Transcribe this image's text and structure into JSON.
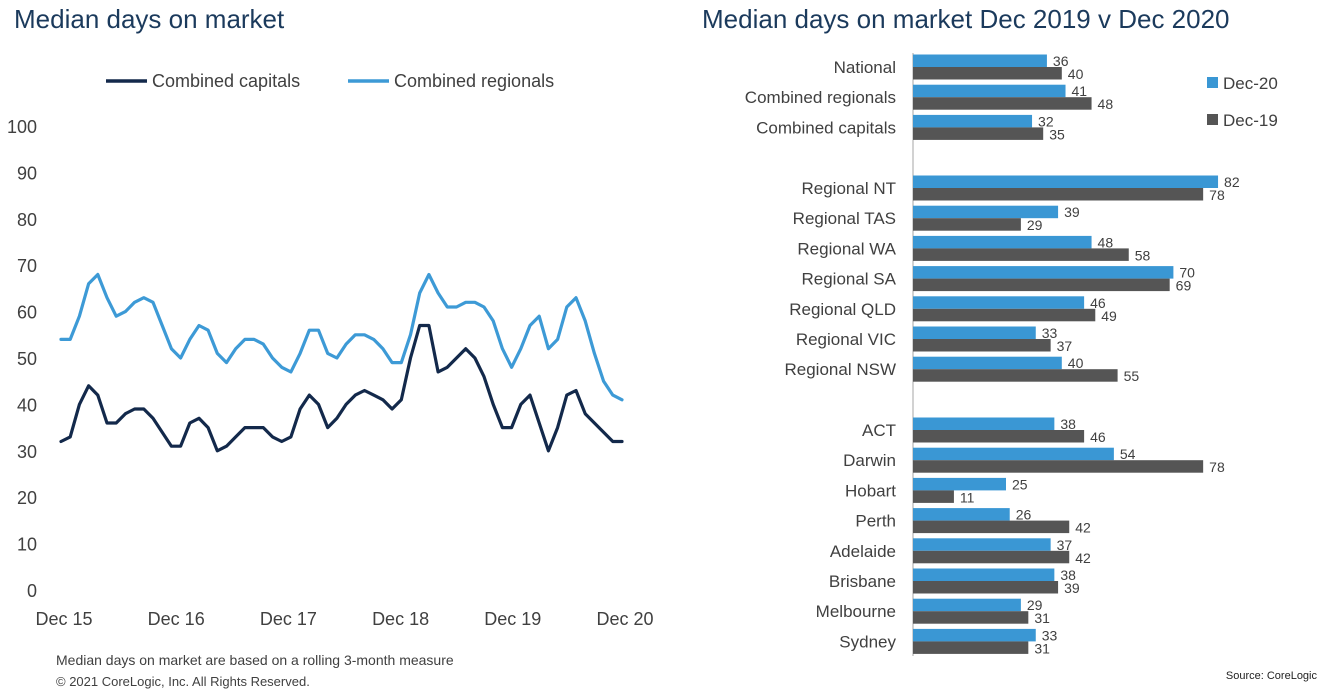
{
  "footnote": "Median days on market are based on a rolling 3-month measure",
  "copyright": "© 2021 CoreLogic, Inc. All Rights Reserved.",
  "source": "Source: CoreLogic",
  "colors": {
    "capitals": "#13294b",
    "regionals": "#3d9ad6",
    "dec20": "#3a97d4",
    "dec19": "#555555",
    "title": "#1b3a5c"
  },
  "chart_data": [
    {
      "type": "line",
      "title": "Median days on market",
      "xlabel": "",
      "ylabel": "",
      "ylim": [
        0,
        100
      ],
      "yticks": [
        0,
        10,
        20,
        30,
        40,
        50,
        60,
        70,
        80,
        90,
        100
      ],
      "xtick_labels": [
        "Dec 15",
        "Dec 16",
        "Dec 17",
        "Dec 18",
        "Dec 19",
        "Dec 20"
      ],
      "x_start": "2015-12",
      "x_end": "2020-12",
      "legend_position": "top",
      "grid": false,
      "series": [
        {
          "name": "Combined capitals",
          "values": [
            32,
            33,
            40,
            44,
            42,
            36,
            36,
            38,
            39,
            39,
            37,
            34,
            31,
            31,
            36,
            37,
            35,
            30,
            31,
            33,
            35,
            35,
            35,
            33,
            32,
            33,
            39,
            42,
            40,
            35,
            37,
            40,
            42,
            43,
            42,
            41,
            39,
            41,
            50,
            57,
            57,
            47,
            48,
            50,
            52,
            50,
            46,
            40,
            35,
            35,
            40,
            42,
            36,
            30,
            35,
            42,
            43,
            38,
            36,
            34,
            32,
            32
          ]
        },
        {
          "name": "Combined regionals",
          "values": [
            54,
            54,
            59,
            66,
            68,
            63,
            59,
            60,
            62,
            63,
            62,
            57,
            52,
            50,
            54,
            57,
            56,
            51,
            49,
            52,
            54,
            54,
            53,
            50,
            48,
            47,
            51,
            56,
            56,
            51,
            50,
            53,
            55,
            55,
            54,
            52,
            49,
            49,
            55,
            64,
            68,
            64,
            61,
            61,
            62,
            62,
            61,
            58,
            52,
            48,
            52,
            57,
            59,
            52,
            54,
            61,
            63,
            58,
            51,
            45,
            42,
            41
          ]
        }
      ]
    },
    {
      "type": "bar",
      "orientation": "horizontal",
      "title": "Median days on market Dec 2019 v Dec 2020",
      "xlim": [
        0,
        90
      ],
      "legend_position": "right",
      "grid": false,
      "groups": [
        {
          "categories": [
            "National",
            "Combined regionals",
            "Combined capitals"
          ],
          "dec20": [
            36,
            41,
            32
          ],
          "dec19": [
            40,
            48,
            35
          ]
        },
        {
          "categories": [
            "Regional NT",
            "Regional TAS",
            "Regional WA",
            "Regional SA",
            "Regional QLD",
            "Regional VIC",
            "Regional NSW"
          ],
          "dec20": [
            82,
            39,
            48,
            70,
            46,
            33,
            40
          ],
          "dec19": [
            78,
            29,
            58,
            69,
            49,
            37,
            55
          ]
        },
        {
          "categories": [
            "ACT",
            "Darwin",
            "Hobart",
            "Perth",
            "Adelaide",
            "Brisbane",
            "Melbourne",
            "Sydney"
          ],
          "dec20": [
            38,
            54,
            25,
            26,
            37,
            38,
            29,
            33
          ],
          "dec19": [
            46,
            78,
            11,
            42,
            42,
            39,
            31,
            31
          ]
        }
      ],
      "series": [
        {
          "name": "Dec-20"
        },
        {
          "name": "Dec-19"
        }
      ]
    }
  ]
}
